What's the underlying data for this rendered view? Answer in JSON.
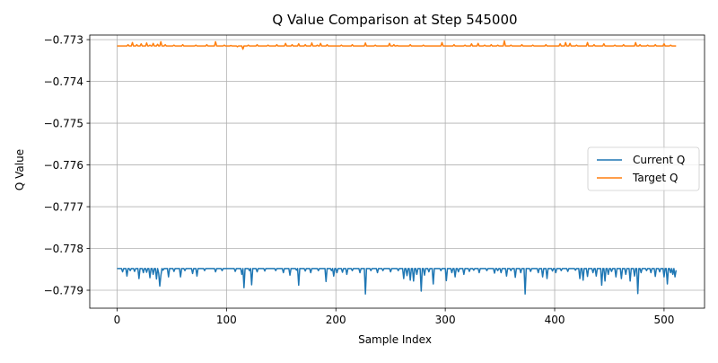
{
  "chart_data": {
    "type": "line",
    "title": "Q Value Comparison at Step 545000",
    "xlabel": "Sample Index",
    "ylabel": "Q Value",
    "xlim": [
      -25,
      537
    ],
    "ylim": [
      -0.77943,
      -0.77289
    ],
    "x_ticks": [
      0,
      100,
      200,
      300,
      400,
      500
    ],
    "x_tick_labels": [
      "0",
      "100",
      "200",
      "300",
      "400",
      "500"
    ],
    "y_ticks": [
      -0.773,
      -0.774,
      -0.775,
      -0.776,
      -0.777,
      -0.778,
      -0.779
    ],
    "y_tick_labels": [
      "−0.773",
      "−0.774",
      "−0.775",
      "−0.776",
      "−0.777",
      "−0.778",
      "−0.779"
    ],
    "grid": true,
    "legend": {
      "position": "center-right"
    },
    "series": [
      {
        "name": "Current Q",
        "color": "#1f77b4",
        "n_points": 512,
        "baseline": -0.77848,
        "spikes": [
          [
            5,
            -0.77856
          ],
          [
            9,
            -0.77866
          ],
          [
            12,
            -0.77853
          ],
          [
            16,
            -0.77855
          ],
          [
            20,
            -0.77872
          ],
          [
            24,
            -0.77858
          ],
          [
            27,
            -0.77857
          ],
          [
            30,
            -0.7787
          ],
          [
            33,
            -0.77862
          ],
          [
            36,
            -0.77873
          ],
          [
            38,
            -0.77859
          ],
          [
            39,
            -0.7789
          ],
          [
            40,
            -0.77865
          ],
          [
            42,
            -0.77852
          ],
          [
            47,
            -0.77868
          ],
          [
            52,
            -0.77855
          ],
          [
            58,
            -0.77868
          ],
          [
            62,
            -0.77853
          ],
          [
            69,
            -0.7786
          ],
          [
            73,
            -0.77866
          ],
          [
            80,
            -0.77853
          ],
          [
            90,
            -0.77856
          ],
          [
            96,
            -0.77853
          ],
          [
            108,
            -0.77855
          ],
          [
            114,
            -0.77862
          ],
          [
            116,
            -0.77894
          ],
          [
            121,
            -0.77853
          ],
          [
            123,
            -0.77887
          ],
          [
            128,
            -0.77856
          ],
          [
            135,
            -0.77854
          ],
          [
            145,
            -0.77853
          ],
          [
            152,
            -0.77858
          ],
          [
            158,
            -0.77864
          ],
          [
            164,
            -0.77852
          ],
          [
            166,
            -0.77888
          ],
          [
            172,
            -0.77854
          ],
          [
            177,
            -0.77858
          ],
          [
            184,
            -0.77853
          ],
          [
            191,
            -0.77879
          ],
          [
            196,
            -0.77853
          ],
          [
            198,
            -0.77866
          ],
          [
            201,
            -0.77858
          ],
          [
            206,
            -0.77857
          ],
          [
            210,
            -0.77862
          ],
          [
            215,
            -0.77853
          ],
          [
            222,
            -0.77858
          ],
          [
            227,
            -0.77909
          ],
          [
            232,
            -0.77853
          ],
          [
            238,
            -0.77858
          ],
          [
            243,
            -0.77853
          ],
          [
            250,
            -0.77856
          ],
          [
            257,
            -0.77853
          ],
          [
            262,
            -0.77872
          ],
          [
            265,
            -0.77865
          ],
          [
            268,
            -0.77876
          ],
          [
            271,
            -0.77878
          ],
          [
            274,
            -0.77862
          ],
          [
            278,
            -0.77902
          ],
          [
            281,
            -0.77864
          ],
          [
            285,
            -0.77856
          ],
          [
            289,
            -0.77885
          ],
          [
            296,
            -0.77853
          ],
          [
            301,
            -0.77877
          ],
          [
            306,
            -0.77858
          ],
          [
            309,
            -0.77868
          ],
          [
            312,
            -0.77856
          ],
          [
            317,
            -0.77862
          ],
          [
            322,
            -0.77855
          ],
          [
            326,
            -0.77852
          ],
          [
            331,
            -0.77858
          ],
          [
            338,
            -0.77853
          ],
          [
            345,
            -0.77859
          ],
          [
            348,
            -0.77853
          ],
          [
            351,
            -0.77858
          ],
          [
            356,
            -0.77866
          ],
          [
            360,
            -0.77853
          ],
          [
            364,
            -0.77869
          ],
          [
            369,
            -0.77858
          ],
          [
            373,
            -0.77909
          ],
          [
            378,
            -0.77855
          ],
          [
            385,
            -0.77858
          ],
          [
            389,
            -0.77868
          ],
          [
            393,
            -0.77872
          ],
          [
            398,
            -0.77854
          ],
          [
            401,
            -0.77858
          ],
          [
            406,
            -0.77853
          ],
          [
            412,
            -0.77855
          ],
          [
            419,
            -0.77852
          ],
          [
            423,
            -0.77872
          ],
          [
            426,
            -0.77876
          ],
          [
            430,
            -0.77867
          ],
          [
            435,
            -0.77858
          ],
          [
            438,
            -0.77866
          ],
          [
            443,
            -0.77888
          ],
          [
            446,
            -0.77878
          ],
          [
            449,
            -0.77862
          ],
          [
            452,
            -0.77855
          ],
          [
            456,
            -0.77868
          ],
          [
            461,
            -0.77872
          ],
          [
            465,
            -0.77862
          ],
          [
            469,
            -0.77878
          ],
          [
            473,
            -0.77866
          ],
          [
            476,
            -0.77908
          ],
          [
            479,
            -0.77858
          ],
          [
            484,
            -0.77853
          ],
          [
            488,
            -0.77858
          ],
          [
            492,
            -0.77867
          ],
          [
            496,
            -0.77856
          ],
          [
            500,
            -0.77868
          ],
          [
            503,
            -0.77885
          ],
          [
            506,
            -0.77858
          ],
          [
            508,
            -0.77862
          ],
          [
            510,
            -0.77868
          ],
          [
            511,
            -0.77852
          ]
        ]
      },
      {
        "name": "Target Q",
        "color": "#ff7f0e",
        "n_points": 512,
        "baseline": -0.77315,
        "spikes": [
          [
            10,
            -0.77312
          ],
          [
            14,
            -0.77307
          ],
          [
            18,
            -0.77312
          ],
          [
            22,
            -0.7731
          ],
          [
            27,
            -0.77308
          ],
          [
            30,
            -0.77313
          ],
          [
            33,
            -0.77309
          ],
          [
            37,
            -0.77311
          ],
          [
            40,
            -0.77305
          ],
          [
            44,
            -0.77312
          ],
          [
            52,
            -0.77313
          ],
          [
            60,
            -0.77312
          ],
          [
            72,
            -0.77313
          ],
          [
            82,
            -0.77312
          ],
          [
            90,
            -0.77305
          ],
          [
            98,
            -0.77313
          ],
          [
            104,
            -0.77314
          ],
          [
            110,
            -0.77317
          ],
          [
            115,
            -0.77323
          ],
          [
            120,
            -0.77313
          ],
          [
            128,
            -0.77312
          ],
          [
            138,
            -0.77313
          ],
          [
            146,
            -0.77312
          ],
          [
            154,
            -0.77309
          ],
          [
            160,
            -0.77312
          ],
          [
            166,
            -0.7731
          ],
          [
            172,
            -0.77312
          ],
          [
            178,
            -0.77308
          ],
          [
            183,
            -0.77313
          ],
          [
            186,
            -0.77309
          ],
          [
            192,
            -0.77312
          ],
          [
            205,
            -0.77313
          ],
          [
            215,
            -0.77312
          ],
          [
            227,
            -0.77308
          ],
          [
            236,
            -0.77313
          ],
          [
            249,
            -0.77309
          ],
          [
            253,
            -0.77312
          ],
          [
            256,
            -0.77314
          ],
          [
            268,
            -0.77312
          ],
          [
            280,
            -0.77313
          ],
          [
            297,
            -0.77307
          ],
          [
            308,
            -0.77312
          ],
          [
            318,
            -0.77313
          ],
          [
            324,
            -0.7731
          ],
          [
            330,
            -0.77309
          ],
          [
            336,
            -0.77313
          ],
          [
            342,
            -0.77312
          ],
          [
            348,
            -0.77313
          ],
          [
            354,
            -0.77303
          ],
          [
            360,
            -0.77313
          ],
          [
            370,
            -0.77312
          ],
          [
            380,
            -0.77313
          ],
          [
            392,
            -0.77312
          ],
          [
            405,
            -0.7731
          ],
          [
            410,
            -0.77307
          ],
          [
            414,
            -0.77309
          ],
          [
            420,
            -0.77313
          ],
          [
            430,
            -0.77307
          ],
          [
            436,
            -0.77312
          ],
          [
            445,
            -0.7731
          ],
          [
            455,
            -0.77313
          ],
          [
            463,
            -0.77312
          ],
          [
            474,
            -0.77307
          ],
          [
            478,
            -0.77312
          ],
          [
            485,
            -0.77313
          ],
          [
            492,
            -0.77312
          ],
          [
            500,
            -0.7731
          ],
          [
            506,
            -0.77313
          ]
        ]
      }
    ]
  }
}
